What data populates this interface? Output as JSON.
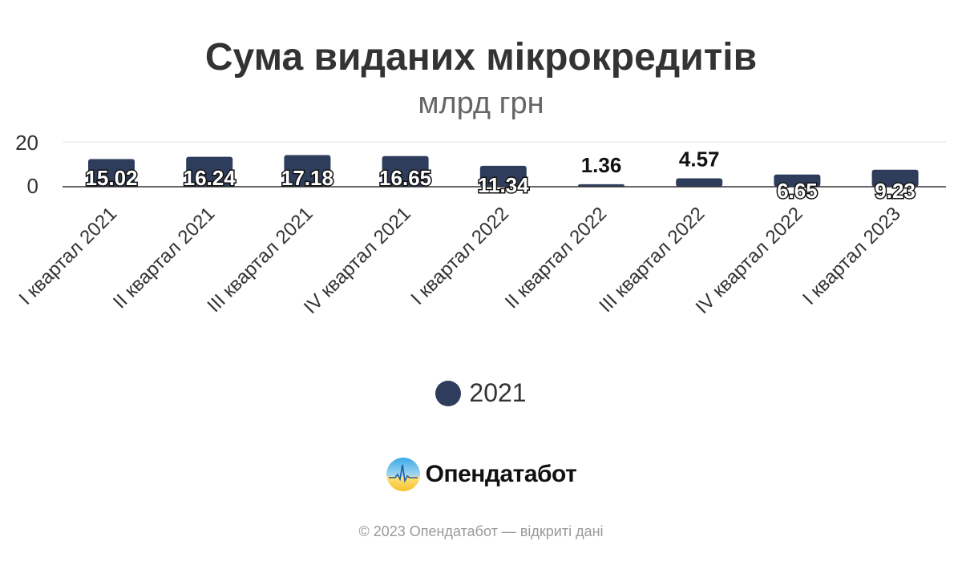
{
  "chart_data": {
    "type": "bar",
    "title": "Сума виданих мікрокредитів",
    "subtitle": "млрд грн",
    "categories": [
      "I квартал 2021",
      "II квартал 2021",
      "III квартал 2021",
      "IV квартал 2021",
      "I квартал 2022",
      "II квартал 2022",
      "III квартал 2022",
      "IV квартал 2022",
      "I квартал 2023"
    ],
    "series": [
      {
        "name": "2021",
        "values": [
          15.02,
          16.24,
          17.18,
          16.65,
          11.34,
          1.36,
          4.57,
          6.65,
          9.23
        ],
        "color": "#2e3d5c"
      }
    ],
    "value_labels": [
      "15.02",
      "16.24",
      "17.18",
      "16.65",
      "11.34",
      "1.36",
      "4.57",
      "6.65",
      "9.23"
    ],
    "yticks": [
      "0",
      "20"
    ],
    "ylim": [
      0,
      20
    ],
    "grid": true,
    "legend": "bottom-center"
  },
  "brand": {
    "name": "Опендатабот"
  },
  "footer": "© 2023 Опендатабот — відкриті дані"
}
